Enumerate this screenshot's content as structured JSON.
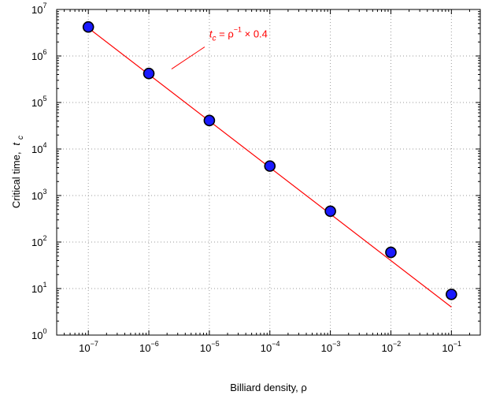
{
  "chart_data": {
    "type": "scatter",
    "xscale": "log",
    "yscale": "log",
    "xlim": [
      3e-08,
      0.3
    ],
    "ylim": [
      1,
      10000000
    ],
    "grid": true,
    "xlabel": "Billiard density, ρ",
    "ylabel_prefix": "Critical time,",
    "ylabel_symbol": "t",
    "ylabel_subscript": "c",
    "x_ticks": [
      {
        "value": 1e-07,
        "base": "10",
        "exp": "−7"
      },
      {
        "value": 1e-06,
        "base": "10",
        "exp": "−6"
      },
      {
        "value": 1e-05,
        "base": "10",
        "exp": "−5"
      },
      {
        "value": 0.0001,
        "base": "10",
        "exp": "−4"
      },
      {
        "value": 0.001,
        "base": "10",
        "exp": "−3"
      },
      {
        "value": 0.01,
        "base": "10",
        "exp": "−2"
      },
      {
        "value": 0.1,
        "base": "10",
        "exp": "−1"
      }
    ],
    "y_ticks": [
      {
        "value": 1,
        "base": "10",
        "exp": "0"
      },
      {
        "value": 10,
        "base": "10",
        "exp": "1"
      },
      {
        "value": 100,
        "base": "10",
        "exp": "2"
      },
      {
        "value": 1000,
        "base": "10",
        "exp": "3"
      },
      {
        "value": 10000,
        "base": "10",
        "exp": "4"
      },
      {
        "value": 100000,
        "base": "10",
        "exp": "5"
      },
      {
        "value": 1000000,
        "base": "10",
        "exp": "6"
      },
      {
        "value": 10000000,
        "base": "10",
        "exp": "7"
      }
    ],
    "points": [
      {
        "x": 1e-07,
        "y": 4200000
      },
      {
        "x": 1e-06,
        "y": 420000
      },
      {
        "x": 1e-05,
        "y": 41000
      },
      {
        "x": 0.0001,
        "y": 4300
      },
      {
        "x": 0.001,
        "y": 460
      },
      {
        "x": 0.01,
        "y": 60
      },
      {
        "x": 0.1,
        "y": 7.5
      }
    ],
    "fit_line": {
      "coefficient": 0.4,
      "exponent": -1,
      "x_from": 1e-07,
      "x_to": 0.1
    },
    "annotation": {
      "symbol": "t",
      "subscript": "c",
      "formula": " = ρ",
      "exponent": "−1",
      "suffix": " × 0.4",
      "anchor_x": 1e-05,
      "anchor_y": 2500000
    },
    "colors": {
      "marker_fill": "#1a1aff",
      "marker_edge": "#000000",
      "fit_line": "#ff0000",
      "annotation": "#ff0000",
      "grid": "#9a9a9a",
      "axes": "#000000"
    }
  }
}
